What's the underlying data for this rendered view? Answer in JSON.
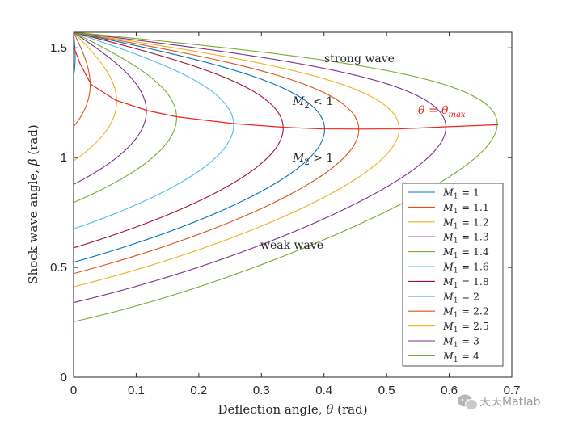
{
  "chart_data": {
    "type": "line",
    "title": "",
    "xlabel_prefix": "Deflection angle, ",
    "xlabel_symbol": "θ",
    "xlabel_suffix": " (rad)",
    "ylabel_prefix": "Shock wave angle, ",
    "ylabel_symbol": "β",
    "ylabel_suffix": " (rad)",
    "xlim": [
      0,
      0.7
    ],
    "ylim": [
      0,
      1.5708
    ],
    "xticks": [
      0,
      0.1,
      0.2,
      0.3,
      0.4,
      0.5,
      0.6,
      0.7
    ],
    "xtick_labels": [
      "0",
      "0.1",
      "0.2",
      "0.3",
      "0.4",
      "0.5",
      "0.6",
      "0.7"
    ],
    "yticks": [
      0,
      0.5,
      1,
      1.5
    ],
    "ytick_labels": [
      "0",
      "0.5",
      "1",
      "1.5"
    ],
    "gamma": 1.4,
    "grid": false,
    "legend_position": "bottom-right",
    "series": [
      {
        "name_sym": "M",
        "name_sub": "1",
        "name_rest": " = 1",
        "mach": 1.02,
        "color": "#0072bd"
      },
      {
        "name_sym": "M",
        "name_sub": "1",
        "name_rest": " = 1.1",
        "mach": 1.1,
        "color": "#d95319"
      },
      {
        "name_sym": "M",
        "name_sub": "1",
        "name_rest": " = 1.2",
        "mach": 1.2,
        "color": "#edb120"
      },
      {
        "name_sym": "M",
        "name_sub": "1",
        "name_rest": " = 1.3",
        "mach": 1.3,
        "color": "#7e2f8e"
      },
      {
        "name_sym": "M",
        "name_sub": "1",
        "name_rest": " = 1.4",
        "mach": 1.4,
        "color": "#77ac30"
      },
      {
        "name_sym": "M",
        "name_sub": "1",
        "name_rest": " = 1.6",
        "mach": 1.6,
        "color": "#4dbeee"
      },
      {
        "name_sym": "M",
        "name_sub": "1",
        "name_rest": " = 1.8",
        "mach": 1.8,
        "color": "#a2142f"
      },
      {
        "name_sym": "M",
        "name_sub": "1",
        "name_rest": " = 2",
        "mach": 2,
        "color": "#0072bd"
      },
      {
        "name_sym": "M",
        "name_sub": "1",
        "name_rest": " = 2.2",
        "mach": 2.2,
        "color": "#d95319"
      },
      {
        "name_sym": "M",
        "name_sub": "1",
        "name_rest": " = 2.5",
        "mach": 2.5,
        "color": "#edb120"
      },
      {
        "name_sym": "M",
        "name_sub": "1",
        "name_rest": " = 3",
        "mach": 3,
        "color": "#7e2f8e"
      },
      {
        "name_sym": "M",
        "name_sub": "1",
        "name_rest": " = 4",
        "mach": 4,
        "color": "#77ac30"
      }
    ],
    "theta_max_curve": {
      "label_prefix": "θ = θ",
      "label_sub": "max",
      "color": "#e8251b",
      "points": [
        [
          0.0,
          1.571
        ],
        [
          0.001,
          1.5
        ],
        [
          0.01,
          1.43
        ],
        [
          0.028,
          1.333
        ],
        [
          0.067,
          1.262
        ],
        [
          0.118,
          1.214
        ],
        [
          0.165,
          1.186
        ],
        [
          0.255,
          1.155
        ],
        [
          0.336,
          1.138
        ],
        [
          0.395,
          1.131
        ],
        [
          0.455,
          1.13
        ],
        [
          0.522,
          1.131
        ],
        [
          0.591,
          1.14
        ],
        [
          0.678,
          1.15
        ]
      ]
    },
    "annotations": {
      "strong_wave": "strong wave",
      "weak_wave": "weak wave",
      "m2_lt_1_sym": "M",
      "m2_lt_1_sub": "2",
      "m2_lt_1_rest": " < 1",
      "m2_gt_1_sym": "M",
      "m2_gt_1_sub": "2",
      "m2_gt_1_rest": " > 1"
    }
  },
  "watermark": {
    "text": "天天Matlab",
    "icon": "wechat-icon"
  }
}
